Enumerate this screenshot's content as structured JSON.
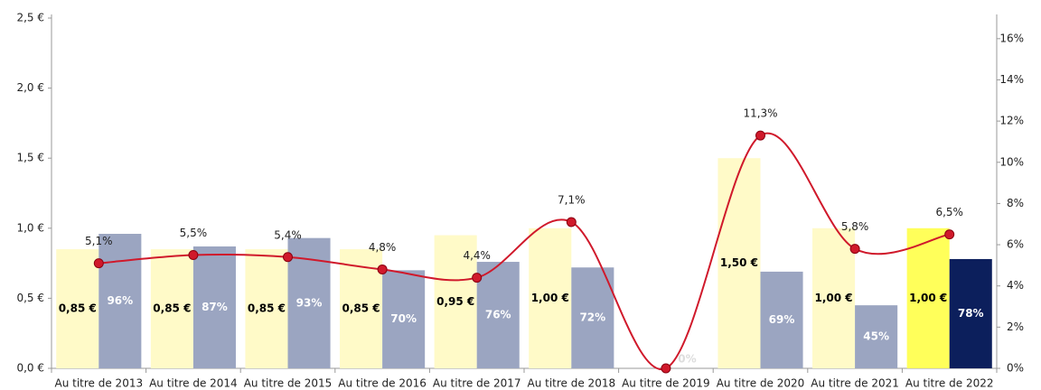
{
  "chart_data": {
    "type": "bar-line",
    "categories": [
      "Au titre de 2013",
      "Au titre de 2014",
      "Au titre de 2015",
      "Au titre de 2016",
      "Au titre de 2017",
      "Au titre de 2018",
      "Au titre de 2019",
      "Au titre de 2020",
      "Au titre de 2021",
      "Au titre de 2022"
    ],
    "series": [
      {
        "type": "bar",
        "colors": [
          "#fffac8",
          "#fffac8",
          "#fffac8",
          "#fffac8",
          "#fffac8",
          "#fffac8",
          "#fffac8",
          "#fffac8",
          "#fffac8",
          "#ffff5a"
        ],
        "label_color": "#000",
        "values": [
          0.85,
          0.85,
          0.85,
          0.85,
          0.95,
          1.0,
          null,
          1.5,
          1.0,
          1.0
        ],
        "value_labels": [
          "0,85 €",
          "0,85 €",
          "0,85 €",
          "0,85 €",
          "0,95 €",
          "1,00 €",
          null,
          "1,50 €",
          "1,00 €",
          "1,00 €"
        ]
      },
      {
        "type": "bar",
        "colors": [
          "#9ba5c1",
          "#9ba5c1",
          "#9ba5c1",
          "#9ba5c1",
          "#9ba5c1",
          "#9ba5c1",
          "#9ba5c1",
          "#9ba5c1",
          "#9ba5c1",
          "#0c1f5c"
        ],
        "label_color": "#fff",
        "values": [
          0.96,
          0.87,
          0.93,
          0.7,
          0.76,
          0.72,
          0,
          0.69,
          0.45,
          0.78
        ],
        "value_labels": [
          "96%",
          "87%",
          "93%",
          "70%",
          "76%",
          "72%",
          "0%",
          "69%",
          "45%",
          "78%"
        ]
      },
      {
        "type": "line",
        "axis": "y2",
        "color": "#d0192b",
        "values": [
          5.1,
          5.5,
          5.4,
          4.8,
          4.4,
          7.1,
          0,
          11.3,
          5.8,
          6.5
        ],
        "value_labels": [
          "5,1%",
          "5,5%",
          "5,4%",
          "4,8%",
          "4,4%",
          "7,1%",
          null,
          "11,3%",
          "5,8%",
          "6,5%"
        ]
      }
    ],
    "ylim": [
      0,
      2.5
    ],
    "yticks": [
      {
        "value": 0,
        "label": "0,0 €"
      },
      {
        "value": 0.5,
        "label": "0,5 €"
      },
      {
        "value": 1,
        "label": "1,0 €"
      },
      {
        "value": 1.5,
        "label": "1,5 €"
      },
      {
        "value": 2,
        "label": "2,0 €"
      },
      {
        "value": 2.5,
        "label": "2,5 €"
      }
    ],
    "y2lim": [
      0,
      17
    ],
    "y2ticks": [
      {
        "value": 0,
        "label": "0%"
      },
      {
        "value": 2,
        "label": "2%"
      },
      {
        "value": 4,
        "label": "4%"
      },
      {
        "value": 6,
        "label": "6%"
      },
      {
        "value": 8,
        "label": "8%"
      },
      {
        "value": 10,
        "label": "10%"
      },
      {
        "value": 12,
        "label": "12%"
      },
      {
        "value": 14,
        "label": "14%"
      },
      {
        "value": 16,
        "label": "16%"
      }
    ]
  }
}
